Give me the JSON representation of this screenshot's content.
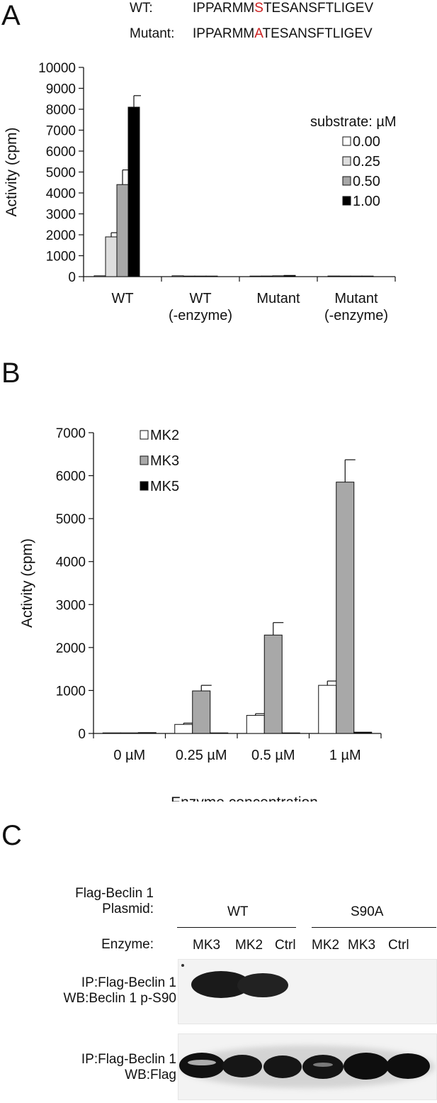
{
  "panels": {
    "a": "A",
    "b": "B",
    "c": "C"
  },
  "sequences": [
    {
      "label": "WT:",
      "pre": "IPPARMM",
      "residue": "S",
      "post": "TESANSFTLIGEV",
      "residue_color": "#cc1f1f"
    },
    {
      "label": "Mutant:",
      "pre": "IPPARMM",
      "residue": "A",
      "post": "TESANSFTLIGEV",
      "residue_color": "#cc1f1f"
    }
  ],
  "chart_data": [
    {
      "type": "bar",
      "ylabel": "Activity (cpm)",
      "xlabel": "",
      "ylim": [
        0,
        10000
      ],
      "yticks": [
        0,
        1000,
        2000,
        3000,
        4000,
        5000,
        6000,
        7000,
        8000,
        9000,
        10000
      ],
      "categories": [
        [
          "WT"
        ],
        [
          "WT",
          "(-enzyme)"
        ],
        [
          "Mutant"
        ],
        [
          "Mutant",
          "(-enzyme)"
        ]
      ],
      "legend_title": "substrate: µM",
      "legend_placement": "top-right",
      "series": [
        {
          "name": "0.00",
          "color": "#ffffff",
          "values": [
            40,
            40,
            20,
            30
          ],
          "errors": [
            0,
            0,
            0,
            0
          ]
        },
        {
          "name": "0.25",
          "color": "#dedede",
          "values": [
            1900,
            10,
            30,
            20
          ],
          "errors": [
            200,
            0,
            0,
            0
          ]
        },
        {
          "name": "0.50",
          "color": "#a8a8a8",
          "values": [
            4400,
            10,
            40,
            10
          ],
          "errors": [
            700,
            0,
            0,
            0
          ]
        },
        {
          "name": "1.00",
          "color": "#000000",
          "values": [
            8100,
            20,
            60,
            10
          ],
          "errors": [
            550,
            0,
            0,
            0
          ]
        }
      ]
    },
    {
      "type": "bar",
      "ylabel": "Activity (cpm)",
      "xlabel": "Enzyme concentration",
      "ylim": [
        0,
        7000
      ],
      "yticks": [
        0,
        1000,
        2000,
        3000,
        4000,
        5000,
        6000,
        7000
      ],
      "categories": [
        [
          "0 µM"
        ],
        [
          "0.25 µM"
        ],
        [
          "0.5 µM"
        ],
        [
          "1 µM"
        ]
      ],
      "legend_placement": "top-left",
      "series": [
        {
          "name": "MK2",
          "color": "#ffffff",
          "values": [
            10,
            210,
            420,
            1120
          ],
          "errors": [
            0,
            30,
            40,
            100
          ]
        },
        {
          "name": "MK3",
          "color": "#a8a8a8",
          "values": [
            10,
            990,
            2290,
            5850
          ],
          "errors": [
            0,
            130,
            290,
            520
          ]
        },
        {
          "name": "MK5",
          "color": "#000000",
          "values": [
            20,
            10,
            10,
            30
          ],
          "errors": [
            0,
            0,
            0,
            0
          ]
        }
      ]
    }
  ],
  "western": {
    "plasmid_label_1": "Flag-Beclin 1",
    "plasmid_label_2": "Plasmid:",
    "group_wt": "WT",
    "group_mut": "S90A",
    "enzyme_label": "Enzyme:",
    "lanes": [
      "MK3",
      "MK2",
      "Ctrl",
      "MK2",
      "MK3",
      "Ctrl"
    ],
    "blot1_line1": "IP:Flag-Beclin 1",
    "blot1_line2": "WB:Beclin 1 p-S90",
    "blot2_line1": "IP:Flag-Beclin 1",
    "blot2_line2": "WB:Flag"
  }
}
